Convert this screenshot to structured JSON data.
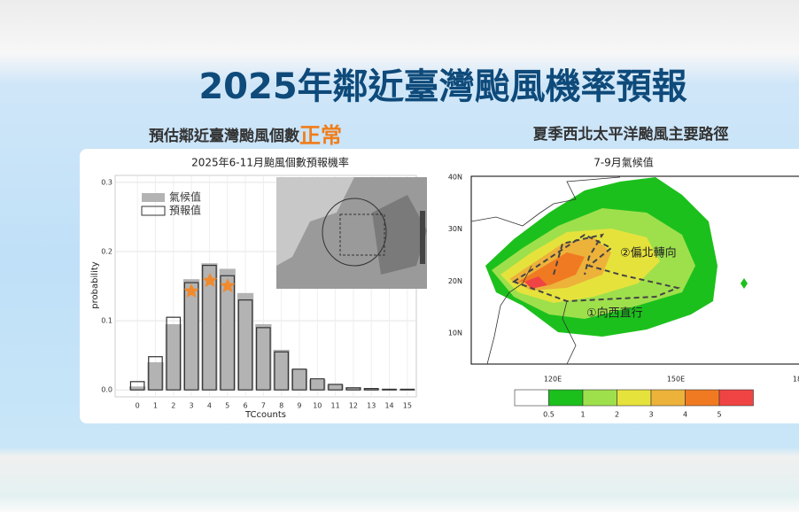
{
  "header": {
    "title": "2025年鄰近臺灣颱風機率預報"
  },
  "left_panel": {
    "subtitle": "預估鄰近臺灣颱風個數",
    "highlight": "正常"
  },
  "right_panel": {
    "subtitle": "夏季西北太平洋颱風主要路徑"
  },
  "chart_data": {
    "type": "bar",
    "title": "2025年6-11月颱風個數預報機率",
    "x_label": "TCcounts",
    "y_label": "probability",
    "categories": [
      "0",
      "1",
      "2",
      "3",
      "4",
      "5",
      "6",
      "7",
      "8",
      "9",
      "10",
      "11",
      "12",
      "13",
      "14",
      "15"
    ],
    "series": [
      {
        "name": "氣候值",
        "color": "#b3b3b3",
        "values": [
          0.005,
          0.04,
          0.095,
          0.16,
          0.183,
          0.175,
          0.14,
          0.095,
          0.058,
          0.03,
          0.015,
          0.008,
          0.004,
          0.002,
          0.001,
          0.0005
        ]
      },
      {
        "name": "預報值",
        "color": "#333333",
        "values": [
          0.012,
          0.048,
          0.105,
          0.155,
          0.18,
          0.165,
          0.13,
          0.09,
          0.055,
          0.03,
          0.016,
          0.008,
          0.003,
          0.002,
          0.001,
          0.001
        ]
      }
    ],
    "ylim": [
      -0.01,
      0.31
    ],
    "yticks": [
      {
        "value": 0,
        "label": "0.0"
      },
      0.1,
      0.2,
      0.3
    ],
    "grid": true,
    "legend": "upper-left"
  },
  "map": {
    "title": "7-9月氣候值",
    "lat_labels": [
      "40N",
      "30N",
      "20N",
      "10N"
    ],
    "lon_labels": [
      "120E",
      "150E",
      "18"
    ],
    "colorbar": {
      "colors": [
        "#ffffff",
        "#1cc01c",
        "#9ee04c",
        "#e6e23c",
        "#ecb23a",
        "#f07a22",
        "#f04444"
      ],
      "labels": [
        "0.5",
        "1",
        "2",
        "3",
        "4",
        "5"
      ]
    },
    "annotations": [
      "②偏北轉向",
      "①向西直行"
    ]
  }
}
